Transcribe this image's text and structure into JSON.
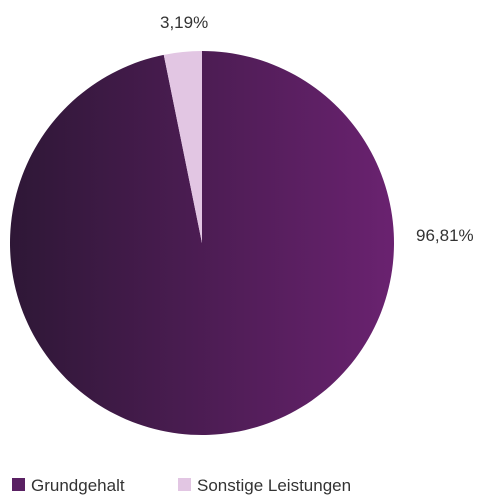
{
  "chart_data": {
    "type": "pie",
    "categories": [
      "Grundgehalt",
      "Sonstige Leistungen"
    ],
    "values": [
      96.81,
      3.19
    ],
    "data_labels": [
      "96,81%",
      "3,19%"
    ],
    "colors": [
      "#5a2163",
      "#e2c6e3"
    ],
    "gradient": [
      "#2e1736",
      "#6a2270"
    ],
    "legend": {
      "placement": "bottom-left",
      "entries": [
        "Grundgehalt",
        "Sonstige Leistungen"
      ]
    }
  }
}
